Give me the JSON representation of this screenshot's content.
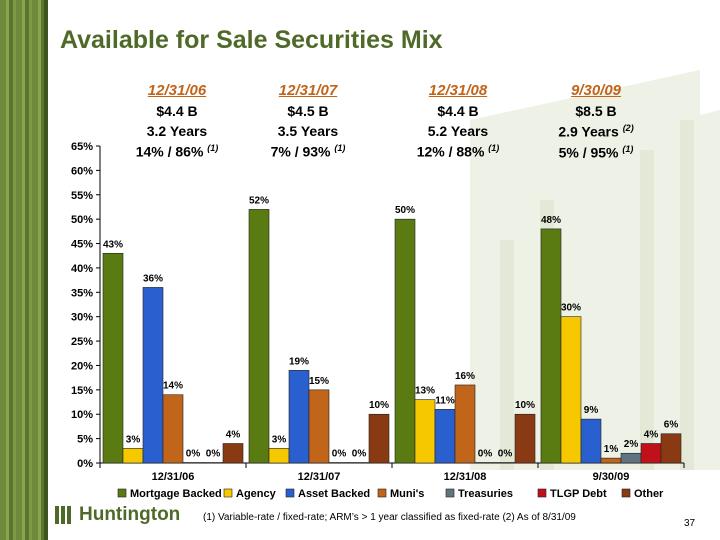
{
  "title": "Available for Sale Securities Mix",
  "periods": [
    {
      "date": "12/31/06",
      "balance": "$4.4 B",
      "duration": "3.2 Years",
      "mix": "14% / 86%",
      "note": "(1)"
    },
    {
      "date": "12/31/07",
      "balance": "$4.5 B",
      "duration": "3.5 Years",
      "mix": "7% / 93%",
      "note": "(1)"
    },
    {
      "date": "12/31/08",
      "balance": "$4.4 B",
      "duration": "5.2 Years",
      "mix": "12% / 88%",
      "note": "(1)"
    },
    {
      "date": "9/30/09",
      "balance": "$8.5 B",
      "duration": "2.9 Years",
      "duration_note": "(2)",
      "mix": "5% / 95%",
      "note": "(1)"
    }
  ],
  "chart_data": {
    "type": "bar",
    "categories": [
      "12/31/06",
      "12/31/07",
      "12/31/08",
      "9/30/09"
    ],
    "series": [
      {
        "name": "Mortgage Backed",
        "color": "#5a7a12",
        "values": [
          43,
          52,
          50,
          48
        ],
        "labels": [
          "43%",
          "52%",
          "50%",
          "48%"
        ]
      },
      {
        "name": "Agency",
        "color": "#f5c800",
        "values": [
          3,
          3,
          13,
          30
        ],
        "labels": [
          "3%",
          "3%",
          "13%",
          "30%"
        ]
      },
      {
        "name": "Asset Backed",
        "color": "#2a5fd0",
        "values": [
          36,
          19,
          11,
          9
        ],
        "labels": [
          "36%",
          "19%",
          "11%",
          "9%"
        ]
      },
      {
        "name": "Muni's",
        "color": "#c0651a",
        "values": [
          14,
          15,
          16,
          1
        ],
        "labels": [
          "14%",
          "15%",
          "16%",
          "1%"
        ]
      },
      {
        "name": "Treasuries",
        "color": "#5f7480",
        "values": [
          0,
          0,
          0,
          2
        ],
        "labels": [
          "0%",
          "0%",
          "0%",
          "2%"
        ]
      },
      {
        "name": "TLGP Debt",
        "color": "#c0101a",
        "values": [
          0,
          0,
          0,
          4
        ],
        "labels": [
          "0%",
          "0%",
          "0%",
          "4%"
        ]
      },
      {
        "name": "Other",
        "color": "#8a3a12",
        "values": [
          4,
          10,
          10,
          6
        ],
        "labels": [
          "4%",
          "10%",
          "10%",
          "6%"
        ]
      }
    ],
    "ylim": [
      0,
      65
    ],
    "yticks": [
      "0%",
      "5%",
      "10%",
      "15%",
      "20%",
      "25%",
      "30%",
      "35%",
      "40%",
      "45%",
      "50%",
      "55%",
      "60%",
      "65%"
    ],
    "grid": false,
    "legend": "bottom"
  },
  "footnote": "(1)  Variable-rate / fixed-rate;  ARM’s > 1 year classified as fixed-rate    (2)  As of 8/31/09",
  "logo_text": "Huntington",
  "page_number": "37"
}
